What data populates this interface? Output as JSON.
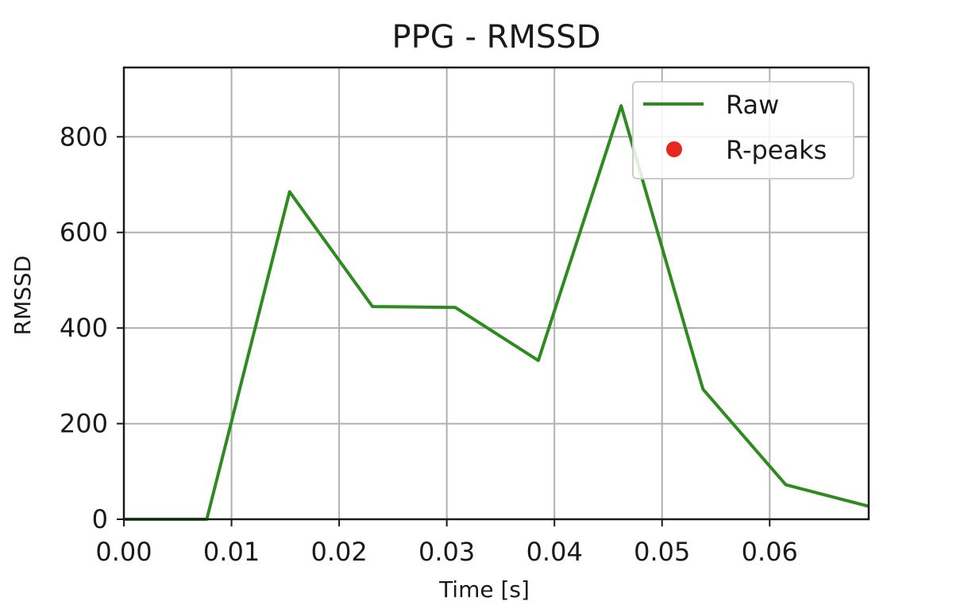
{
  "chart_data": {
    "type": "line",
    "title": "PPG - RMSSD",
    "xlabel": "Time [s]",
    "ylabel": "RMSSD",
    "xlim": [
      0.0,
      0.0692
    ],
    "ylim": [
      0,
      945
    ],
    "grid": true,
    "legend_position": "top-right",
    "x_ticks": [
      0.0,
      0.01,
      0.02,
      0.03,
      0.04,
      0.05,
      0.06
    ],
    "x_tick_labels": [
      "0.00",
      "0.01",
      "0.02",
      "0.03",
      "0.04",
      "0.05",
      "0.06"
    ],
    "y_ticks": [
      0,
      200,
      400,
      600,
      800
    ],
    "y_tick_labels": [
      "0",
      "200",
      "400",
      "600",
      "800"
    ],
    "series": [
      {
        "name": "Raw",
        "kind": "line",
        "color": "#2e8b1f",
        "x": [
          0.0,
          0.0077,
          0.0154,
          0.0231,
          0.0308,
          0.0385,
          0.0462,
          0.0538,
          0.0615,
          0.0692
        ],
        "y": [
          0,
          0,
          685,
          445,
          443,
          332,
          865,
          272,
          72,
          27
        ]
      },
      {
        "name": "R-peaks",
        "kind": "scatter",
        "color": "#e8281e",
        "x": [],
        "y": []
      }
    ]
  }
}
